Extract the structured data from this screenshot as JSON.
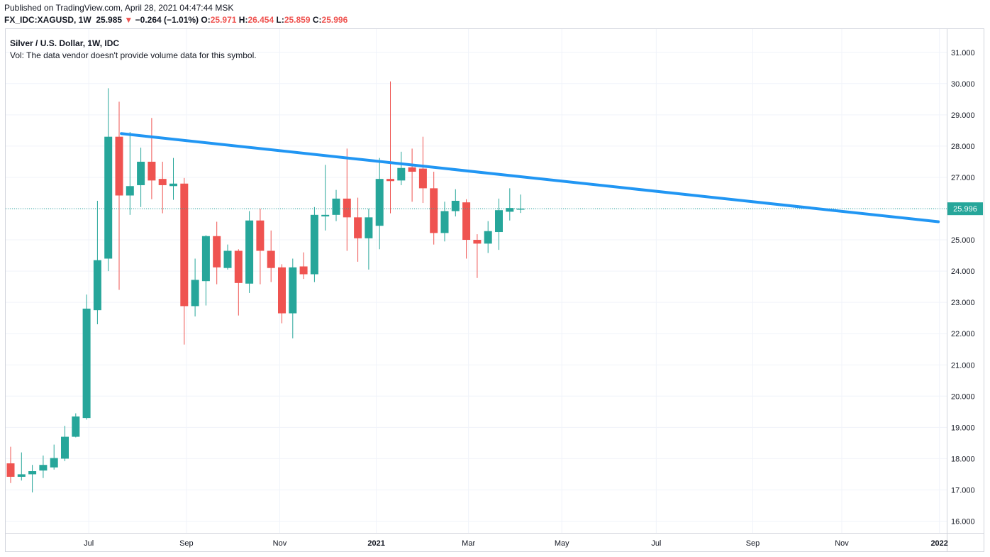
{
  "header": {
    "published": "Published on TradingView.com, April 28, 2021 04:47:44 MSK",
    "symbol": "FX_IDC:XAGUSD, 1W",
    "last": "25.985",
    "change": "−0.264 (−1.01%)",
    "o_label": "O:",
    "o": "25.971",
    "h_label": "H:",
    "h": "26.454",
    "l_label": "L:",
    "l": "25.859",
    "c_label": "C:",
    "c": "25.996"
  },
  "legend": {
    "title": "Silver / U.S. Dollar, 1W, IDC",
    "vol": "Vol: The data vendor doesn't provide volume data for this symbol."
  },
  "colors": {
    "up": "#26a69a",
    "down": "#ef5350",
    "trendline": "#2196f3",
    "price_label_bg": "#26a69a",
    "grid": "#f0f3fa"
  },
  "price_label": "25.996",
  "chart_data": {
    "type": "candlestick",
    "title": "Silver / U.S. Dollar, 1W, IDC",
    "ylim": [
      15.6,
      31.6
    ],
    "y_ticks": [
      "16.000",
      "17.000",
      "18.000",
      "19.000",
      "20.000",
      "21.000",
      "22.000",
      "23.000",
      "24.000",
      "25.000",
      "26.000",
      "27.000",
      "28.000",
      "29.000",
      "30.000",
      "31.000"
    ],
    "x_ticks": [
      {
        "label": "Jul",
        "week": 7.2,
        "bold": false
      },
      {
        "label": "Sep",
        "week": 16.2,
        "bold": false
      },
      {
        "label": "Nov",
        "week": 24.8,
        "bold": false
      },
      {
        "label": "2021",
        "week": 33.7,
        "bold": true
      },
      {
        "label": "Mar",
        "week": 42.2,
        "bold": false
      },
      {
        "label": "May",
        "week": 50.8,
        "bold": false
      },
      {
        "label": "Jul",
        "week": 59.5,
        "bold": false
      },
      {
        "label": "Sep",
        "week": 68.4,
        "bold": false
      },
      {
        "label": "Nov",
        "week": 76.6,
        "bold": false
      },
      {
        "label": "2022",
        "week": 85.6,
        "bold": true
      }
    ],
    "candles": [
      {
        "o": 17.85,
        "h": 18.38,
        "l": 17.22,
        "c": 17.42
      },
      {
        "o": 17.42,
        "h": 18.2,
        "l": 17.3,
        "c": 17.5
      },
      {
        "o": 17.5,
        "h": 17.8,
        "l": 16.92,
        "c": 17.6
      },
      {
        "o": 17.62,
        "h": 18.1,
        "l": 17.38,
        "c": 17.8
      },
      {
        "o": 17.72,
        "h": 18.45,
        "l": 17.65,
        "c": 18.02
      },
      {
        "o": 18.0,
        "h": 19.05,
        "l": 17.92,
        "c": 18.7
      },
      {
        "o": 18.7,
        "h": 19.45,
        "l": 18.68,
        "c": 19.35
      },
      {
        "o": 19.3,
        "h": 23.25,
        "l": 19.25,
        "c": 22.8
      },
      {
        "o": 22.75,
        "h": 26.25,
        "l": 22.3,
        "c": 24.35
      },
      {
        "o": 24.4,
        "h": 29.85,
        "l": 24.0,
        "c": 28.3
      },
      {
        "o": 28.3,
        "h": 29.42,
        "l": 23.4,
        "c": 26.42
      },
      {
        "o": 26.42,
        "h": 28.45,
        "l": 25.8,
        "c": 26.72
      },
      {
        "o": 26.75,
        "h": 27.95,
        "l": 26.05,
        "c": 27.5
      },
      {
        "o": 27.5,
        "h": 28.9,
        "l": 26.3,
        "c": 26.9
      },
      {
        "o": 26.95,
        "h": 27.5,
        "l": 25.85,
        "c": 26.75
      },
      {
        "o": 26.72,
        "h": 27.62,
        "l": 26.28,
        "c": 26.8
      },
      {
        "o": 26.8,
        "h": 26.98,
        "l": 21.65,
        "c": 22.88
      },
      {
        "o": 22.88,
        "h": 24.4,
        "l": 22.55,
        "c": 23.72
      },
      {
        "o": 23.68,
        "h": 25.15,
        "l": 22.9,
        "c": 25.12
      },
      {
        "o": 25.12,
        "h": 25.58,
        "l": 23.58,
        "c": 24.12
      },
      {
        "o": 24.1,
        "h": 24.85,
        "l": 24.05,
        "c": 24.65
      },
      {
        "o": 24.65,
        "h": 24.7,
        "l": 22.58,
        "c": 23.62
      },
      {
        "o": 23.6,
        "h": 25.92,
        "l": 23.3,
        "c": 25.62
      },
      {
        "o": 25.62,
        "h": 26.0,
        "l": 23.58,
        "c": 24.65
      },
      {
        "o": 24.65,
        "h": 25.3,
        "l": 23.65,
        "c": 24.1
      },
      {
        "o": 24.12,
        "h": 24.22,
        "l": 22.33,
        "c": 22.65
      },
      {
        "o": 22.65,
        "h": 24.4,
        "l": 21.85,
        "c": 24.12
      },
      {
        "o": 24.15,
        "h": 24.6,
        "l": 23.75,
        "c": 23.9
      },
      {
        "o": 23.9,
        "h": 26.05,
        "l": 23.65,
        "c": 25.8
      },
      {
        "o": 25.75,
        "h": 27.4,
        "l": 25.3,
        "c": 25.8
      },
      {
        "o": 25.8,
        "h": 26.6,
        "l": 25.6,
        "c": 26.32
      },
      {
        "o": 26.32,
        "h": 27.92,
        "l": 24.65,
        "c": 25.72
      },
      {
        "o": 25.72,
        "h": 26.35,
        "l": 24.3,
        "c": 25.05
      },
      {
        "o": 25.05,
        "h": 26.0,
        "l": 24.05,
        "c": 25.72
      },
      {
        "o": 25.45,
        "h": 27.62,
        "l": 24.7,
        "c": 26.95
      },
      {
        "o": 26.95,
        "h": 30.07,
        "l": 25.85,
        "c": 26.88
      },
      {
        "o": 26.9,
        "h": 27.82,
        "l": 26.75,
        "c": 27.3
      },
      {
        "o": 27.32,
        "h": 27.92,
        "l": 26.22,
        "c": 27.18
      },
      {
        "o": 27.28,
        "h": 28.3,
        "l": 26.18,
        "c": 26.65
      },
      {
        "o": 26.65,
        "h": 27.18,
        "l": 24.85,
        "c": 25.22
      },
      {
        "o": 25.22,
        "h": 26.22,
        "l": 24.95,
        "c": 25.92
      },
      {
        "o": 25.92,
        "h": 26.62,
        "l": 25.75,
        "c": 26.25
      },
      {
        "o": 26.2,
        "h": 26.3,
        "l": 24.4,
        "c": 25.0
      },
      {
        "o": 25.0,
        "h": 25.18,
        "l": 23.78,
        "c": 24.88
      },
      {
        "o": 24.88,
        "h": 25.6,
        "l": 24.58,
        "c": 25.28
      },
      {
        "o": 25.25,
        "h": 26.32,
        "l": 24.68,
        "c": 25.95
      },
      {
        "o": 25.9,
        "h": 26.65,
        "l": 25.62,
        "c": 26.02
      },
      {
        "o": 25.97,
        "h": 26.45,
        "l": 25.86,
        "c": 26.0
      }
    ],
    "trendline": {
      "x": [
        10.2,
        85.5
      ],
      "y": [
        28.4,
        25.58
      ]
    },
    "last_price": 25.996
  }
}
